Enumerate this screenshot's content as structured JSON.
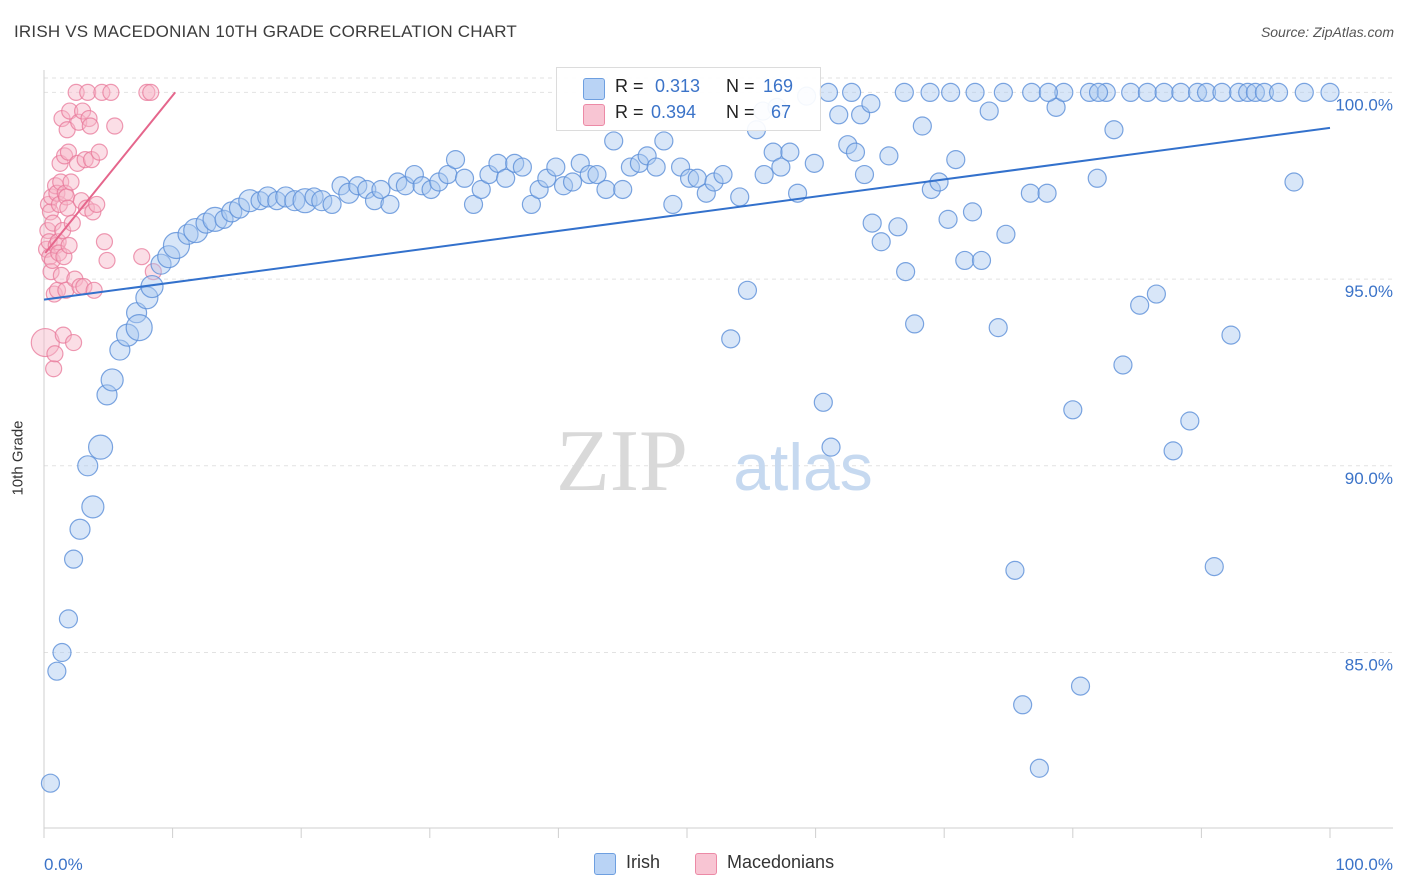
{
  "title": "IRISH VS MACEDONIAN 10TH GRADE CORRELATION CHART",
  "source": "Source: ZipAtlas.com",
  "watermark": {
    "zip": "ZIP",
    "atlas": "atlas"
  },
  "legend_top": {
    "rows": [
      {
        "r_label": "R =",
        "r_value": "0.313",
        "n_label": "N =",
        "n_value": "169"
      },
      {
        "r_label": "R =",
        "r_value": "0.394",
        "n_label": "N =",
        "n_value": "67"
      }
    ]
  },
  "legend_bottom": {
    "irish": "Irish",
    "macedonians": "Macedonians"
  },
  "colors": {
    "irish_fill": "#a8c8f0",
    "irish_stroke": "#5b8fd8",
    "irish_line": "#3371cc",
    "mac_fill": "#f6b6c8",
    "mac_stroke": "#e8789a",
    "mac_line": "#e5668c",
    "axis_text": "#3b73c8",
    "grid": "#e2e2e2"
  },
  "chart_data": {
    "type": "scatter",
    "title": "IRISH VS MACEDONIAN 10TH GRADE CORRELATION CHART",
    "xlabel": "",
    "ylabel": "10th Grade",
    "xlim": [
      0,
      100
    ],
    "ylim": [
      80.3,
      100.6
    ],
    "x_tick_labels": [
      "0.0%",
      "100.0%"
    ],
    "y_ticks": [
      85,
      90,
      95,
      100
    ],
    "y_tick_labels": [
      "85.0%",
      "90.0%",
      "95.0%",
      "100.0%"
    ],
    "series": [
      {
        "name": "Irish",
        "r": 0.313,
        "n": 169,
        "trend": {
          "x": [
            0,
            100
          ],
          "y": [
            94.45,
            99.05
          ]
        },
        "points": [
          [
            0.5,
            81.5,
            9
          ],
          [
            1.0,
            84.5,
            9
          ],
          [
            1.4,
            85.0,
            9
          ],
          [
            1.9,
            85.9,
            9
          ],
          [
            2.3,
            87.5,
            9
          ],
          [
            2.8,
            88.3,
            10
          ],
          [
            3.4,
            90.0,
            10
          ],
          [
            3.8,
            88.9,
            11
          ],
          [
            4.4,
            90.5,
            12
          ],
          [
            4.9,
            91.9,
            10
          ],
          [
            5.3,
            92.3,
            11
          ],
          [
            5.9,
            93.1,
            10
          ],
          [
            6.5,
            93.5,
            11
          ],
          [
            7.2,
            94.1,
            10
          ],
          [
            7.4,
            93.7,
            13
          ],
          [
            8.0,
            94.5,
            11
          ],
          [
            8.4,
            94.8,
            11
          ],
          [
            9.1,
            95.4,
            10
          ],
          [
            9.7,
            95.6,
            11
          ],
          [
            10.3,
            95.9,
            13
          ],
          [
            11.2,
            96.2,
            10
          ],
          [
            11.8,
            96.3,
            12
          ],
          [
            12.6,
            96.5,
            10
          ],
          [
            13.3,
            96.6,
            12
          ],
          [
            14.0,
            96.6,
            9
          ],
          [
            14.6,
            96.8,
            10
          ],
          [
            15.2,
            96.9,
            10
          ],
          [
            16.0,
            97.1,
            11
          ],
          [
            16.8,
            97.1,
            9
          ],
          [
            17.4,
            97.2,
            10
          ],
          [
            18.1,
            97.1,
            9
          ],
          [
            18.8,
            97.2,
            10
          ],
          [
            19.5,
            97.1,
            10
          ],
          [
            20.3,
            97.1,
            12
          ],
          [
            21.0,
            97.2,
            9
          ],
          [
            21.6,
            97.1,
            10
          ],
          [
            22.4,
            97.0,
            9
          ],
          [
            23.1,
            97.5,
            9
          ],
          [
            23.7,
            97.3,
            10
          ],
          [
            24.4,
            97.5,
            9
          ],
          [
            25.1,
            97.4,
            9
          ],
          [
            25.7,
            97.1,
            9
          ],
          [
            26.2,
            97.4,
            9
          ],
          [
            26.9,
            97.0,
            9
          ],
          [
            27.5,
            97.6,
            9
          ],
          [
            28.1,
            97.5,
            9
          ],
          [
            28.8,
            97.8,
            9
          ],
          [
            29.4,
            97.5,
            9
          ],
          [
            30.1,
            97.4,
            9
          ],
          [
            30.7,
            97.6,
            9
          ],
          [
            31.4,
            97.8,
            9
          ],
          [
            32.0,
            98.2,
            9
          ],
          [
            32.7,
            97.7,
            9
          ],
          [
            33.4,
            97.0,
            9
          ],
          [
            34.0,
            97.4,
            9
          ],
          [
            34.6,
            97.8,
            9
          ],
          [
            35.3,
            98.1,
            9
          ],
          [
            35.9,
            97.7,
            9
          ],
          [
            36.6,
            98.1,
            9
          ],
          [
            37.2,
            98.0,
            9
          ],
          [
            37.9,
            97.0,
            9
          ],
          [
            38.5,
            97.4,
            9
          ],
          [
            39.1,
            97.7,
            9
          ],
          [
            39.8,
            98.0,
            9
          ],
          [
            40.4,
            97.5,
            9
          ],
          [
            41.1,
            97.6,
            9
          ],
          [
            41.7,
            98.1,
            9
          ],
          [
            42.4,
            97.8,
            9
          ],
          [
            43.0,
            97.8,
            9
          ],
          [
            43.7,
            97.4,
            9
          ],
          [
            44.3,
            98.7,
            9
          ],
          [
            45.0,
            97.4,
            9
          ],
          [
            45.6,
            98.0,
            9
          ],
          [
            46.3,
            98.1,
            9
          ],
          [
            46.9,
            98.3,
            9
          ],
          [
            47.6,
            98.0,
            9
          ],
          [
            48.2,
            98.7,
            9
          ],
          [
            48.9,
            97.0,
            9
          ],
          [
            49.5,
            98.0,
            9
          ],
          [
            50.2,
            97.7,
            9
          ],
          [
            50.8,
            97.7,
            9
          ],
          [
            51.5,
            97.3,
            9
          ],
          [
            52.1,
            97.6,
            9
          ],
          [
            52.8,
            97.8,
            9
          ],
          [
            53.4,
            93.4,
            9
          ],
          [
            54.1,
            97.2,
            9
          ],
          [
            54.7,
            94.7,
            9
          ],
          [
            55.4,
            99.0,
            9
          ],
          [
            56.0,
            97.8,
            9
          ],
          [
            56.7,
            98.4,
            9
          ],
          [
            57.3,
            98.0,
            9
          ],
          [
            58.0,
            98.4,
            9
          ],
          [
            58.6,
            97.3,
            9
          ],
          [
            59.3,
            99.9,
            9
          ],
          [
            59.9,
            98.1,
            9
          ],
          [
            60.6,
            91.7,
            9
          ],
          [
            61.2,
            90.5,
            9
          ],
          [
            61.8,
            99.4,
            9
          ],
          [
            62.5,
            98.6,
            9
          ],
          [
            63.1,
            98.4,
            9
          ],
          [
            63.8,
            97.8,
            9
          ],
          [
            64.4,
            96.5,
            9
          ],
          [
            65.1,
            96.0,
            9
          ],
          [
            65.7,
            98.3,
            9
          ],
          [
            66.4,
            96.4,
            9
          ],
          [
            67.0,
            95.2,
            9
          ],
          [
            67.7,
            93.8,
            9
          ],
          [
            68.3,
            99.1,
            9
          ],
          [
            69.0,
            97.4,
            9
          ],
          [
            69.6,
            97.6,
            9
          ],
          [
            70.3,
            96.6,
            9
          ],
          [
            70.9,
            98.2,
            9
          ],
          [
            71.6,
            95.5,
            9
          ],
          [
            72.2,
            96.8,
            9
          ],
          [
            72.9,
            95.5,
            9
          ],
          [
            73.5,
            99.5,
            9
          ],
          [
            74.2,
            93.7,
            9
          ],
          [
            74.8,
            96.2,
            9
          ],
          [
            75.5,
            87.2,
            9
          ],
          [
            76.1,
            83.6,
            9
          ],
          [
            76.7,
            97.3,
            9
          ],
          [
            77.4,
            81.9,
            9
          ],
          [
            78.0,
            97.3,
            9
          ],
          [
            78.7,
            99.6,
            9
          ],
          [
            79.3,
            100.0,
            9
          ],
          [
            80.0,
            91.5,
            9
          ],
          [
            80.6,
            84.1,
            9
          ],
          [
            81.3,
            100.0,
            9
          ],
          [
            81.9,
            97.7,
            9
          ],
          [
            82.6,
            100.0,
            9
          ],
          [
            83.2,
            99.0,
            9
          ],
          [
            83.9,
            92.7,
            9
          ],
          [
            84.5,
            100.0,
            9
          ],
          [
            85.2,
            94.3,
            9
          ],
          [
            85.8,
            100.0,
            9
          ],
          [
            86.5,
            94.6,
            9
          ],
          [
            87.1,
            100.0,
            9
          ],
          [
            87.8,
            90.4,
            9
          ],
          [
            88.4,
            100.0,
            9
          ],
          [
            89.1,
            91.2,
            9
          ],
          [
            89.7,
            100.0,
            9
          ],
          [
            90.4,
            100.0,
            9
          ],
          [
            91.0,
            87.3,
            9
          ],
          [
            91.6,
            100.0,
            9
          ],
          [
            92.3,
            93.5,
            9
          ],
          [
            92.9,
            100.0,
            9
          ],
          [
            93.6,
            100.0,
            9
          ],
          [
            94.2,
            100.0,
            9
          ],
          [
            94.9,
            100.0,
            9
          ],
          [
            96.0,
            100.0,
            9
          ],
          [
            97.2,
            97.6,
            9
          ],
          [
            98.0,
            100.0,
            9
          ],
          [
            100.0,
            100.0,
            9
          ],
          [
            55.9,
            99.5,
            9
          ],
          [
            57.0,
            99.6,
            9
          ],
          [
            63.5,
            99.4,
            9
          ],
          [
            64.3,
            99.7,
            9
          ],
          [
            61.0,
            100.0,
            9
          ],
          [
            62.8,
            100.0,
            9
          ],
          [
            66.9,
            100.0,
            9
          ],
          [
            68.9,
            100.0,
            9
          ],
          [
            70.5,
            100.0,
            9
          ],
          [
            72.4,
            100.0,
            9
          ],
          [
            74.6,
            100.0,
            9
          ],
          [
            76.8,
            100.0,
            9
          ],
          [
            78.1,
            100.0,
            9
          ],
          [
            82.0,
            100.0,
            9
          ]
        ]
      },
      {
        "name": "Macedonians",
        "r": 0.394,
        "n": 67,
        "trend": {
          "x": [
            0.1,
            10.2
          ],
          "y": [
            95.7,
            100.0
          ]
        },
        "points": [
          [
            0.1,
            93.3,
            14
          ],
          [
            0.2,
            95.8,
            8
          ],
          [
            0.3,
            96.3,
            8
          ],
          [
            0.35,
            97.0,
            8
          ],
          [
            0.4,
            96.0,
            8
          ],
          [
            0.45,
            95.6,
            8
          ],
          [
            0.5,
            96.8,
            8
          ],
          [
            0.55,
            95.2,
            8
          ],
          [
            0.6,
            97.2,
            8
          ],
          [
            0.65,
            95.5,
            8
          ],
          [
            0.7,
            96.5,
            8
          ],
          [
            0.75,
            92.6,
            8
          ],
          [
            0.8,
            94.6,
            8
          ],
          [
            0.85,
            93.0,
            8
          ],
          [
            0.9,
            97.5,
            8
          ],
          [
            0.95,
            95.9,
            8
          ],
          [
            1.0,
            97.3,
            8
          ],
          [
            1.05,
            94.7,
            8
          ],
          [
            1.1,
            96.0,
            8
          ],
          [
            1.15,
            95.7,
            8
          ],
          [
            1.2,
            97.0,
            8
          ],
          [
            1.25,
            98.1,
            8
          ],
          [
            1.3,
            97.6,
            8
          ],
          [
            1.35,
            95.1,
            8
          ],
          [
            1.4,
            99.3,
            8
          ],
          [
            1.45,
            96.3,
            8
          ],
          [
            1.5,
            93.5,
            8
          ],
          [
            1.55,
            95.6,
            8
          ],
          [
            1.6,
            98.3,
            8
          ],
          [
            1.65,
            97.3,
            8
          ],
          [
            1.7,
            94.7,
            8
          ],
          [
            1.75,
            97.2,
            8
          ],
          [
            1.8,
            99.0,
            8
          ],
          [
            1.85,
            96.9,
            8
          ],
          [
            1.9,
            98.4,
            8
          ],
          [
            1.95,
            95.9,
            8
          ],
          [
            2.0,
            99.5,
            8
          ],
          [
            2.1,
            97.6,
            8
          ],
          [
            2.2,
            96.5,
            8
          ],
          [
            2.3,
            93.3,
            8
          ],
          [
            2.4,
            95.0,
            8
          ],
          [
            2.5,
            100.0,
            8
          ],
          [
            2.6,
            98.1,
            8
          ],
          [
            2.7,
            99.2,
            8
          ],
          [
            2.8,
            94.8,
            8
          ],
          [
            2.9,
            97.1,
            8
          ],
          [
            3.0,
            99.5,
            8
          ],
          [
            3.1,
            94.8,
            8
          ],
          [
            3.2,
            98.2,
            8
          ],
          [
            3.3,
            96.9,
            8
          ],
          [
            3.4,
            100.0,
            8
          ],
          [
            3.5,
            99.3,
            8
          ],
          [
            3.6,
            99.1,
            8
          ],
          [
            3.7,
            98.2,
            8
          ],
          [
            3.8,
            96.8,
            8
          ],
          [
            3.9,
            94.7,
            8
          ],
          [
            4.1,
            97.0,
            8
          ],
          [
            4.3,
            98.4,
            8
          ],
          [
            4.5,
            100.0,
            8
          ],
          [
            4.7,
            96.0,
            8
          ],
          [
            4.9,
            95.5,
            8
          ],
          [
            5.2,
            100.0,
            8
          ],
          [
            5.5,
            99.1,
            8
          ],
          [
            7.6,
            95.6,
            8
          ],
          [
            8.0,
            100.0,
            8
          ],
          [
            8.3,
            100.0,
            8
          ],
          [
            8.5,
            95.2,
            8
          ]
        ]
      }
    ]
  }
}
